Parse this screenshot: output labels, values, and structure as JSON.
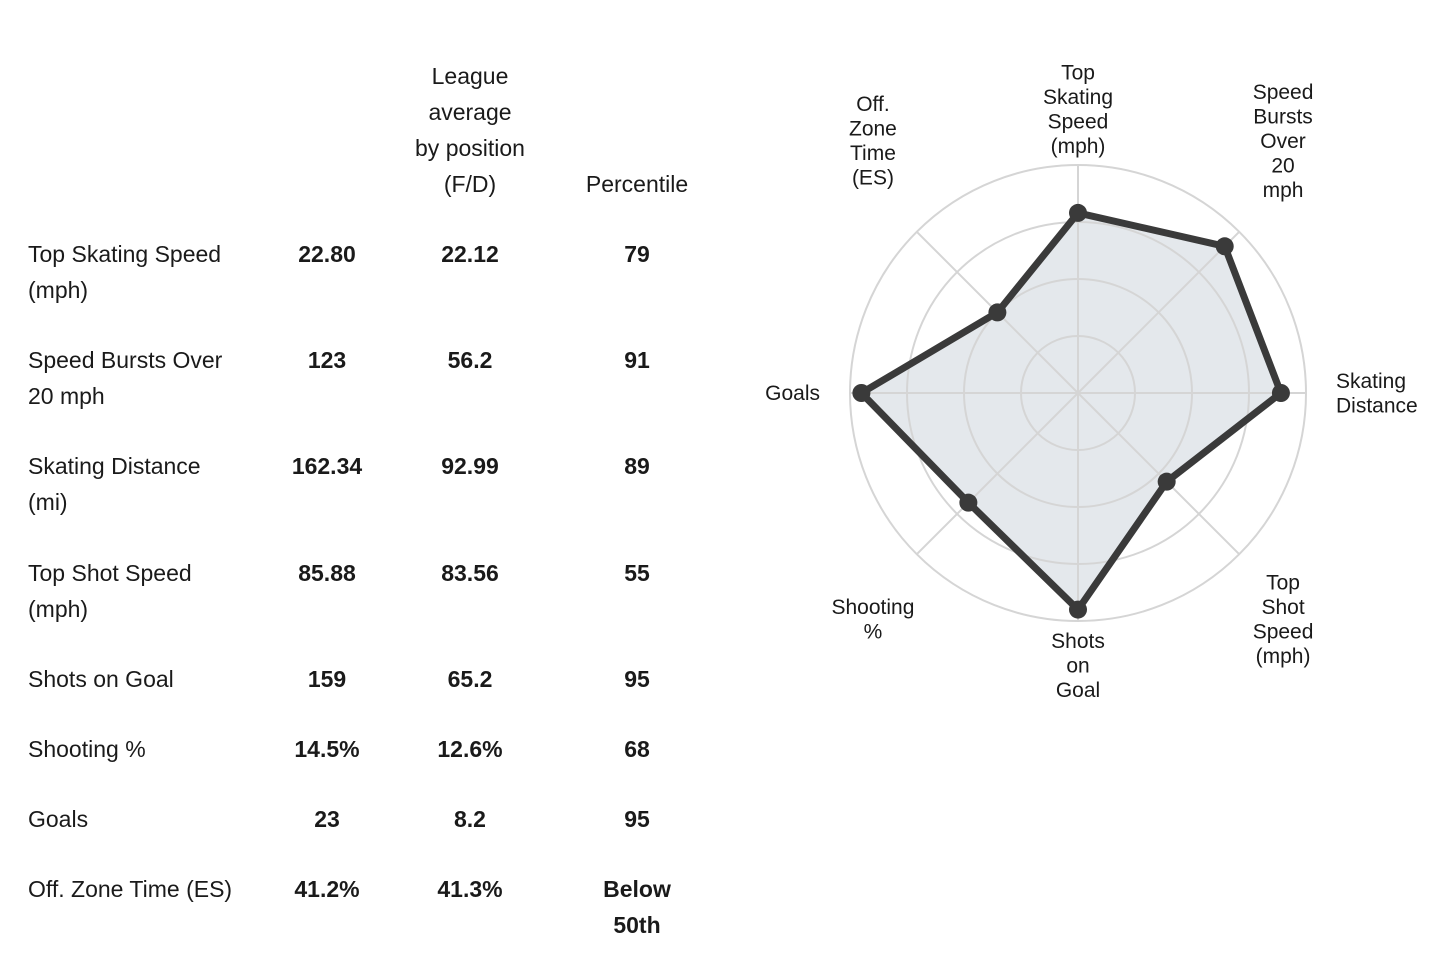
{
  "table": {
    "headers": {
      "metric": "",
      "player": "",
      "league": "League\naverage\nby position\n(F/D)",
      "percentile": "Percentile"
    },
    "rows": [
      {
        "metric": "Top Skating Speed\n(mph)",
        "player": "22.80",
        "league": "22.12",
        "percentile": "79"
      },
      {
        "metric": "Speed Bursts Over\n20 mph",
        "player": "123",
        "league": "56.2",
        "percentile": "91"
      },
      {
        "metric": "Skating Distance\n(mi)",
        "player": "162.34",
        "league": "92.99",
        "percentile": "89"
      },
      {
        "metric": "Top Shot Speed\n(mph)",
        "player": "85.88",
        "league": "83.56",
        "percentile": "55"
      },
      {
        "metric": "Shots on Goal",
        "player": "159",
        "league": "65.2",
        "percentile": "95"
      },
      {
        "metric": "Shooting %",
        "player": "14.5%",
        "league": "12.6%",
        "percentile": "68"
      },
      {
        "metric": "Goals",
        "player": "23",
        "league": "8.2",
        "percentile": "95"
      },
      {
        "metric": "Off. Zone Time (ES)",
        "player": "41.2%",
        "league": "41.3%",
        "percentile": "Below\n50th"
      }
    ]
  },
  "chart_data": {
    "type": "radar",
    "axes": [
      "Top\nSkating\nSpeed\n(mph)",
      "Speed\nBursts\nOver\n20\nmph",
      "Skating\nDistance",
      "Top\nShot\nSpeed\n(mph)",
      "Shots\non\nGoal",
      "Shooting\n%",
      "Goals",
      "Off.\nZone\nTime\n(ES)"
    ],
    "values": [
      79,
      91,
      89,
      55,
      95,
      68,
      95,
      50
    ],
    "range": [
      0,
      100
    ],
    "rings": [
      25,
      50,
      75,
      100
    ],
    "colors": {
      "line": "#3a3a3a",
      "fill": "#e4e8ec",
      "grid": "#d5d5d5"
    }
  }
}
